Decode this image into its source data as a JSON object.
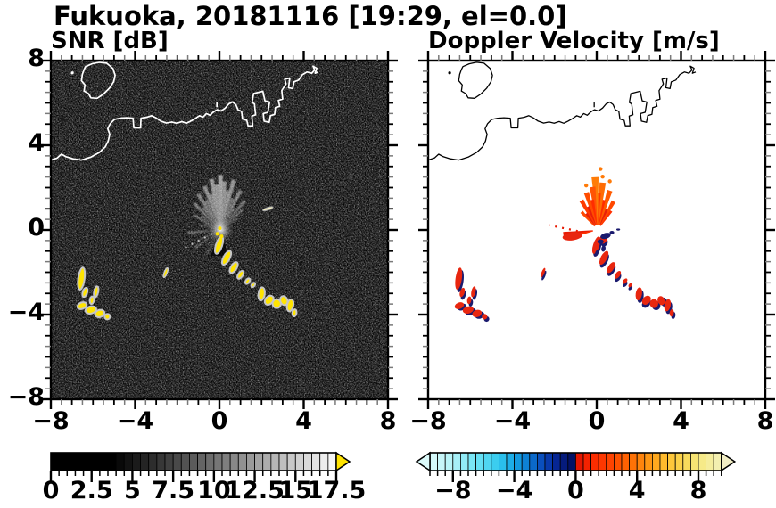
{
  "title": "Fukuoka, 20181116 [19:29, el=0.0]",
  "chart_data": {
    "type": "heatmap",
    "title": "Fukuoka, 20181116 [19:29, el=0.0]",
    "station": "Fukuoka",
    "date": "20181116",
    "time": "19:29",
    "elevation": "el=0.0",
    "panels": [
      {
        "id": "snr",
        "title": "SNR [dB]",
        "background": "#000000",
        "coast_color": "#ffffff"
      },
      {
        "id": "velocity",
        "title": "Doppler Velocity [m/s]",
        "background": "#ffffff",
        "coast_color": "#000000"
      }
    ],
    "axes": {
      "xlim": [
        -8,
        8
      ],
      "ylim": [
        -8,
        8
      ],
      "major_ticks": [
        -8,
        -4,
        0,
        4,
        8
      ],
      "major_labels": [
        "−8",
        "−4",
        "0",
        "4",
        "8"
      ],
      "y_labels": [
        "8",
        "4",
        "0",
        "−4",
        "−8"
      ],
      "y_values": [
        8,
        4,
        0,
        -4,
        -8
      ],
      "minor_step": 0.5
    },
    "colorbars": [
      {
        "id": "snr",
        "min": 0,
        "max": 17.5,
        "cell": 0.5,
        "tick_values": [
          0,
          2.5,
          5,
          7.5,
          10,
          12.5,
          15,
          17.5
        ],
        "tick_labels": [
          "0",
          "2.5",
          "5",
          "7.5",
          "10",
          "12.5",
          "15",
          "17.5"
        ],
        "arrow_right": "#ffe300",
        "scale": "grayscale",
        "black_below": 3.75,
        "white_at": 17.4
      },
      {
        "id": "velocity",
        "min": -9.5,
        "max": 9.5,
        "cell": 0.5,
        "tick_values": [
          -8,
          -4,
          0,
          4,
          8
        ],
        "tick_labels": [
          "−8",
          "−4",
          "0",
          "4",
          "8"
        ],
        "arrow_left": "#dcfafa",
        "arrow_right": "#f2eec4",
        "scale": "diverging",
        "stops_neg": [
          [
            -9.75,
            "#e2fbfb"
          ],
          [
            -8,
            "#b2f3f8"
          ],
          [
            -6.5,
            "#6fe3f5"
          ],
          [
            -5,
            "#30c8ee"
          ],
          [
            -4,
            "#16a4e4"
          ],
          [
            -3,
            "#0b76d0"
          ],
          [
            -2,
            "#0942b6"
          ],
          [
            -1.25,
            "#062694"
          ],
          [
            -0.5,
            "#041670"
          ],
          [
            -0.01,
            "#030f5a"
          ]
        ],
        "stops_pos": [
          [
            0.01,
            "#dd1000"
          ],
          [
            1,
            "#fa2800"
          ],
          [
            2,
            "#ff3c00"
          ],
          [
            3,
            "#ff5800"
          ],
          [
            4,
            "#ff7a08"
          ],
          [
            5,
            "#ffa018"
          ],
          [
            6,
            "#ffc232"
          ],
          [
            7,
            "#f9d650"
          ],
          [
            8,
            "#f6e87e"
          ],
          [
            9,
            "#f4efa6"
          ],
          [
            9.75,
            "#f2eec4"
          ]
        ]
      }
    ],
    "features": {
      "radar_center": [
        0.05,
        0.0
      ],
      "island": [
        [
          -6.35,
          7.72
        ],
        [
          -6.05,
          7.85
        ],
        [
          -5.7,
          7.92
        ],
        [
          -5.35,
          7.88
        ],
        [
          -5.05,
          7.62
        ],
        [
          -4.95,
          7.3
        ],
        [
          -5.02,
          7.0
        ],
        [
          -5.22,
          6.7
        ],
        [
          -5.5,
          6.42
        ],
        [
          -5.8,
          6.22
        ],
        [
          -6.1,
          6.24
        ],
        [
          -6.22,
          6.44
        ],
        [
          -6.42,
          6.56
        ],
        [
          -6.38,
          6.85
        ],
        [
          -6.55,
          7.05
        ],
        [
          -6.5,
          7.35
        ],
        [
          -6.42,
          7.58
        ]
      ],
      "island_dot": [
        -6.98,
        7.42
      ],
      "coast": [
        [
          -8.0,
          3.3
        ],
        [
          -7.7,
          3.4
        ],
        [
          -7.5,
          3.58
        ],
        [
          -7.28,
          3.46
        ],
        [
          -6.95,
          3.36
        ],
        [
          -6.55,
          3.3
        ],
        [
          -6.1,
          3.44
        ],
        [
          -5.7,
          3.66
        ],
        [
          -5.42,
          3.92
        ],
        [
          -5.28,
          4.2
        ],
        [
          -5.2,
          4.52
        ],
        [
          -5.3,
          4.78
        ],
        [
          -5.18,
          5.02
        ],
        [
          -4.98,
          5.22
        ],
        [
          -4.7,
          5.28
        ],
        [
          -4.4,
          5.3
        ],
        [
          -4.1,
          5.28
        ],
        [
          -4.06,
          4.82
        ],
        [
          -3.74,
          4.82
        ],
        [
          -3.72,
          5.28
        ],
        [
          -3.45,
          5.32
        ],
        [
          -3.22,
          5.4
        ],
        [
          -3.02,
          5.3
        ],
        [
          -2.78,
          5.14
        ],
        [
          -2.52,
          5.05
        ],
        [
          -2.26,
          5.1
        ],
        [
          -2.02,
          5.04
        ],
        [
          -1.78,
          5.12
        ],
        [
          -1.56,
          5.04
        ],
        [
          -1.36,
          5.14
        ],
        [
          -1.15,
          5.26
        ],
        [
          -0.95,
          5.4
        ],
        [
          -0.78,
          5.33
        ],
        [
          -0.62,
          5.5
        ],
        [
          -0.45,
          5.42
        ],
        [
          -0.28,
          5.58
        ],
        [
          -0.1,
          5.68
        ],
        [
          0.08,
          5.62
        ],
        [
          0.28,
          5.76
        ],
        [
          0.45,
          5.96
        ],
        [
          0.62,
          6.04
        ],
        [
          0.78,
          5.92
        ],
        [
          0.88,
          5.68
        ],
        [
          1.05,
          5.6
        ],
        [
          1.1,
          5.24
        ],
        [
          1.3,
          5.18
        ],
        [
          1.36,
          4.92
        ],
        [
          1.58,
          4.92
        ],
        [
          1.54,
          5.38
        ],
        [
          1.72,
          5.44
        ],
        [
          1.66,
          5.96
        ],
        [
          1.55,
          6.02
        ],
        [
          1.62,
          6.44
        ],
        [
          2.06,
          6.55
        ],
        [
          2.16,
          6.1
        ],
        [
          2.38,
          6.04
        ],
        [
          2.3,
          5.56
        ],
        [
          2.08,
          5.5
        ],
        [
          2.12,
          5.14
        ],
        [
          2.36,
          5.08
        ],
        [
          2.42,
          5.4
        ],
        [
          2.62,
          5.46
        ],
        [
          2.66,
          5.78
        ],
        [
          2.86,
          5.84
        ],
        [
          2.8,
          6.12
        ],
        [
          3.0,
          6.18
        ],
        [
          2.96,
          6.58
        ],
        [
          3.16,
          6.9
        ],
        [
          3.1,
          7.12
        ],
        [
          3.34,
          7.18
        ],
        [
          3.28,
          6.72
        ],
        [
          3.48,
          6.68
        ],
        [
          3.54,
          7.0
        ],
        [
          3.76,
          7.08
        ],
        [
          3.94,
          7.34
        ],
        [
          4.16,
          7.46
        ],
        [
          4.38,
          7.4
        ],
        [
          4.52,
          7.56
        ],
        [
          4.44,
          7.74
        ],
        [
          4.62,
          7.64
        ],
        [
          4.54,
          7.4
        ],
        [
          4.7,
          7.46
        ]
      ],
      "coast_mark": [
        -0.12,
        5.8,
        -0.12,
        6.02
      ],
      "snr_rays": [
        [
          34,
          1.0,
          0.22
        ],
        [
          42,
          1.4,
          0.3
        ],
        [
          50,
          1.8,
          0.34
        ],
        [
          57,
          1.2,
          0.3
        ],
        [
          63,
          2.1,
          0.42
        ],
        [
          69,
          1.6,
          0.38
        ],
        [
          75,
          2.45,
          0.5
        ],
        [
          80,
          1.9,
          0.45
        ],
        [
          85,
          2.3,
          0.5
        ],
        [
          90,
          2.6,
          0.55
        ],
        [
          95,
          2.15,
          0.5
        ],
        [
          100,
          2.45,
          0.52
        ],
        [
          105,
          1.75,
          0.45
        ],
        [
          110,
          2.2,
          0.48
        ],
        [
          116,
          1.55,
          0.4
        ],
        [
          122,
          2.0,
          0.44
        ],
        [
          128,
          1.35,
          0.36
        ],
        [
          135,
          1.75,
          0.4
        ],
        [
          143,
          1.15,
          0.3
        ],
        [
          151,
          1.45,
          0.32
        ],
        [
          159,
          0.85,
          0.24
        ],
        [
          168,
          1.05,
          0.22
        ],
        [
          185,
          1.55,
          0.3
        ],
        [
          205,
          1.1,
          0.18
        ],
        [
          215,
          1.5,
          0.22
        ],
        [
          228,
          0.9,
          0.16
        ],
        [
          240,
          1.3,
          0.18
        ]
      ],
      "snr_center_dots": [
        [
          0.02,
          0.08
        ],
        [
          -0.1,
          -0.18
        ],
        [
          0.1,
          -0.3
        ]
      ],
      "snr_dash": [
        2.3,
        1.0,
        0.52,
        0.12,
        -18
      ],
      "snr_dotted_ray": [
        -0.35,
        -0.18,
        -1.75,
        -0.9
      ],
      "vel_wedges": [
        [
          55,
          1.1,
          "#ff3000"
        ],
        [
          61,
          1.55,
          "#ff4800"
        ],
        [
          67,
          1.05,
          "#e82008"
        ],
        [
          73,
          1.95,
          "#ff5a00"
        ],
        [
          79,
          1.45,
          "#ff2d00"
        ],
        [
          84,
          2.25,
          "#ff6c04"
        ],
        [
          89,
          1.75,
          "#ff3a00"
        ],
        [
          93,
          2.5,
          "#ff7c08"
        ],
        [
          97,
          2.05,
          "#ff5404"
        ],
        [
          101,
          1.45,
          "#ff2d00"
        ],
        [
          107,
          1.85,
          "#ff4c00"
        ],
        [
          113,
          1.2,
          "#e82008"
        ],
        [
          119,
          1.6,
          "#ff3a00"
        ],
        [
          125,
          0.95,
          "#e82008"
        ],
        [
          132,
          1.15,
          "#ff4800"
        ],
        [
          187,
          1.65,
          "#e81c04"
        ],
        [
          193,
          1.2,
          "#ff3000"
        ]
      ],
      "vel_wing_blob": [
        -1.15,
        -0.3,
        0.95,
        0.38,
        -8
      ],
      "vel_orange_dots": [
        [
          0.28,
          2.52
        ],
        [
          0.18,
          2.88
        ],
        [
          -0.5,
          2.1
        ],
        [
          0.62,
          2.3
        ]
      ],
      "vel_red_dotted_ray": [
        -0.9,
        -0.05,
        -2.25,
        0.22
      ],
      "vel_navy_patches": [
        [
          0.42,
          -0.28,
          0.5,
          0.28,
          -15
        ],
        [
          0.18,
          -0.55,
          0.3,
          0.22,
          0
        ],
        [
          0.72,
          -0.12,
          0.22,
          0.16,
          0
        ],
        [
          1.02,
          0.02,
          0.18,
          0.1,
          0
        ],
        [
          0.32,
          -0.88,
          0.2,
          0.3,
          10
        ],
        [
          0.0,
          -1.1,
          0.15,
          0.3,
          15
        ]
      ],
      "vel_extra_blob": [
        0.3,
        -0.45,
        0.35,
        0.4,
        20
      ],
      "blobs_chain": [
        [
          -0.02,
          -0.72,
          0.3,
          0.85,
          18
        ],
        [
          0.34,
          -1.32,
          0.3,
          0.72,
          28
        ],
        [
          0.68,
          -1.78,
          0.28,
          0.58,
          32
        ],
        [
          1.0,
          -2.12,
          0.22,
          0.42,
          34
        ],
        [
          1.34,
          -2.42,
          0.18,
          0.3,
          38
        ],
        [
          1.6,
          -2.6,
          0.15,
          0.24,
          40
        ],
        [
          2.0,
          -3.02,
          0.3,
          0.62,
          8
        ],
        [
          2.36,
          -3.32,
          0.36,
          0.48,
          42
        ],
        [
          2.72,
          -3.48,
          0.4,
          0.42,
          -5
        ],
        [
          3.06,
          -3.34,
          0.34,
          0.44,
          -22
        ],
        [
          3.36,
          -3.56,
          0.3,
          0.58,
          12
        ],
        [
          3.56,
          -3.92,
          0.2,
          0.34,
          8
        ]
      ],
      "blobs_cluster": [
        [
          -6.55,
          -2.3,
          0.3,
          1.05,
          8
        ],
        [
          -6.38,
          -2.95,
          0.22,
          0.45,
          18
        ],
        [
          -5.85,
          -2.92,
          0.2,
          0.52,
          12
        ],
        [
          -6.05,
          -3.32,
          0.2,
          0.36,
          8
        ],
        [
          -6.52,
          -3.58,
          0.46,
          0.3,
          -22
        ],
        [
          -6.1,
          -3.78,
          0.52,
          0.34,
          -14
        ],
        [
          -5.68,
          -3.95,
          0.46,
          0.34,
          -18
        ],
        [
          -5.32,
          -4.1,
          0.26,
          0.26,
          0
        ]
      ],
      "blob_dash": [
        -2.55,
        -2.02,
        0.14,
        0.48,
        22
      ],
      "colors": {
        "snr_blob": "#ffe400",
        "snr_halo": "#c6c6c6",
        "vel_blob": "#e8260f",
        "vel_navy": "#1a1a6e",
        "center_dot": "#ffe400"
      }
    }
  }
}
